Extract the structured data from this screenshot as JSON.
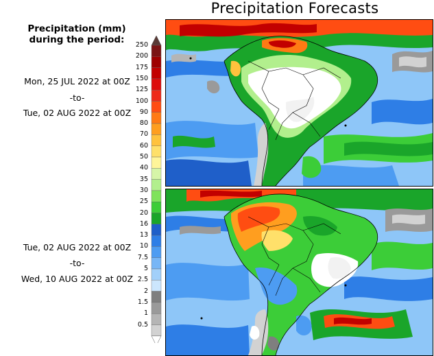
{
  "title": "Precipitation Forecasts",
  "legend": {
    "title_line1": "Precipitation (mm)",
    "title_line2": "during the period:",
    "scale": [
      {
        "value": "250",
        "color": "#7a1414"
      },
      {
        "value": "200",
        "color": "#9e0000"
      },
      {
        "value": "175",
        "color": "#c20000"
      },
      {
        "value": "150",
        "color": "#dd0c0c"
      },
      {
        "value": "125",
        "color": "#ee2a1a"
      },
      {
        "value": "100",
        "color": "#ff4d12"
      },
      {
        "value": "90",
        "color": "#ff7a14"
      },
      {
        "value": "80",
        "color": "#ff9e1f"
      },
      {
        "value": "70",
        "color": "#ffc23d"
      },
      {
        "value": "60",
        "color": "#ffe06a"
      },
      {
        "value": "50",
        "color": "#fff59a"
      },
      {
        "value": "40",
        "color": "#d6f5a8"
      },
      {
        "value": "35",
        "color": "#b2ef8d"
      },
      {
        "value": "30",
        "color": "#7fe35c"
      },
      {
        "value": "25",
        "color": "#3ccd38"
      },
      {
        "value": "20",
        "color": "#1aa52a"
      },
      {
        "value": "16",
        "color": "#1f5fc9"
      },
      {
        "value": "13",
        "color": "#2e7ee6"
      },
      {
        "value": "10",
        "color": "#4d9cf2"
      },
      {
        "value": "7.5",
        "color": "#77b6f6"
      },
      {
        "value": "5",
        "color": "#a2d0fa"
      },
      {
        "value": "2.5",
        "color": "#cce6fd"
      },
      {
        "value": "2",
        "color": "#7f7f7f"
      },
      {
        "value": "1.5",
        "color": "#9a9a9a"
      },
      {
        "value": "1",
        "color": "#b5b5b5"
      },
      {
        "value": "0.5",
        "color": "#d2d2d2"
      }
    ]
  },
  "period1": {
    "start": "Mon, 25 JUL 2022 at 00Z",
    "sep": "-to-",
    "end": "Tue, 02 AUG 2022 at 00Z"
  },
  "period2": {
    "start": "Tue, 02 AUG 2022 at 00Z",
    "sep": "-to-",
    "end": "Wed, 10 AUG 2022 at 00Z"
  },
  "maps": [
    {
      "name": "period-1-map"
    },
    {
      "name": "period-2-map"
    }
  ]
}
